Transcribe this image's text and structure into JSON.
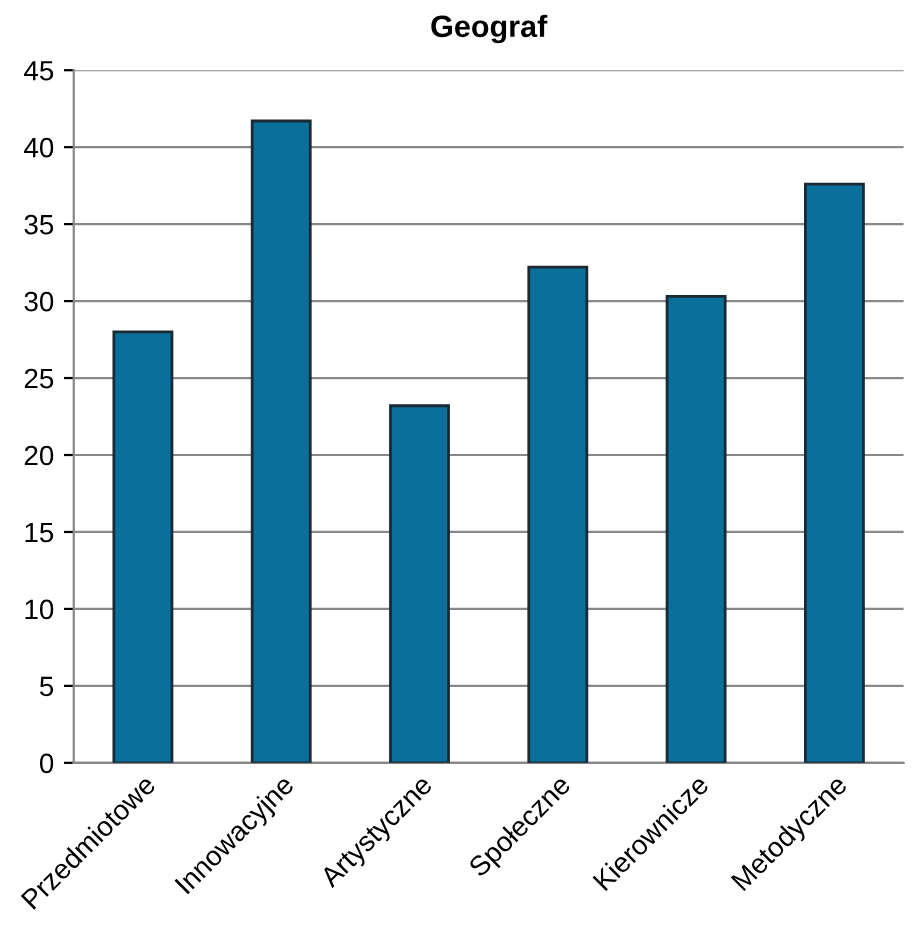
{
  "chart_data": {
    "type": "bar",
    "title": "Geograf",
    "categories": [
      "Przedmiotowe",
      "Innowacyjne",
      "Artystyczne",
      "Społeczne",
      "Kierownicze",
      "Metodyczne"
    ],
    "values": [
      28,
      41.7,
      23.2,
      32.2,
      30.3,
      37.6
    ],
    "color": "#0a6f9a",
    "ylim": [
      0,
      45
    ],
    "yticks": [
      0,
      5,
      10,
      15,
      20,
      25,
      30,
      35,
      40,
      45
    ],
    "grid": "y"
  }
}
